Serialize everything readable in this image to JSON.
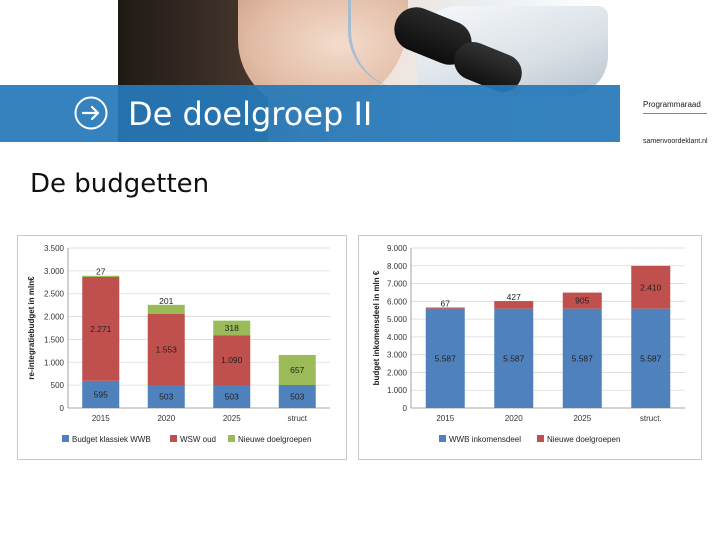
{
  "slide": {
    "title": "De doelgroep II",
    "subtitle": "De budgetten",
    "logo": {
      "name": "Programmaraad",
      "url": "samenvoordeklant.nl"
    }
  },
  "colors": {
    "bar_blue": "#4f81bd",
    "bar_red": "#c0504d",
    "bar_green": "#9bbb59",
    "banner": "#2678b9"
  },
  "icons": {
    "title_arrow": "arrow-right-circle-icon"
  },
  "chart_data": [
    {
      "type": "bar",
      "stacked": true,
      "categories": [
        "2015",
        "2020",
        "2025",
        "struct"
      ],
      "ylabel": "re-integratiebudget in mln€",
      "ylim": [
        0,
        3500
      ],
      "yticks": [
        0,
        500,
        1000,
        1500,
        2000,
        2500,
        3000,
        3500
      ],
      "yticklabels": [
        "0",
        "500",
        "1.000",
        "1.500",
        "2.000",
        "2.500",
        "3.000",
        "3.500"
      ],
      "grid": true,
      "legend": "bottom",
      "series": [
        {
          "name": "Budget klassiek WWB",
          "color": "#4f81bd",
          "values": [
            595,
            503,
            503,
            503
          ],
          "labels": [
            "595",
            "503",
            "503",
            "503"
          ]
        },
        {
          "name": "WSW oud",
          "color": "#c0504d",
          "values": [
            2271,
            1553,
            1090,
            0
          ],
          "labels": [
            "2.271",
            "1.553",
            "1.090",
            ""
          ]
        },
        {
          "name": "Nieuwe doelgroepen",
          "color": "#9bbb59",
          "values": [
            27,
            201,
            318,
            657
          ],
          "labels": [
            "27",
            "201",
            "318",
            "657"
          ]
        }
      ]
    },
    {
      "type": "bar",
      "stacked": true,
      "categories": [
        "2015",
        "2020",
        "2025",
        "struct."
      ],
      "ylabel": "budget inkomensdeel in mln €",
      "ylim": [
        0,
        9000
      ],
      "yticks": [
        0,
        1000,
        2000,
        3000,
        4000,
        5000,
        6000,
        7000,
        8000,
        9000
      ],
      "yticklabels": [
        "0",
        "1.000",
        "2.000",
        "3.000",
        "4.000",
        "5.000",
        "6.000",
        "7.000",
        "8.000",
        "9.000"
      ],
      "grid": true,
      "legend": "bottom",
      "series": [
        {
          "name": "WWB inkomensdeel",
          "color": "#4f81bd",
          "values": [
            5587,
            5587,
            5587,
            5587
          ],
          "labels": [
            "5.587",
            "5.587",
            "5.587",
            "5.587"
          ]
        },
        {
          "name": "Nieuwe doelgroepen",
          "color": "#c0504d",
          "values": [
            67,
            427,
            905,
            2410
          ],
          "labels": [
            "67",
            "427",
            "905",
            "2.410"
          ]
        }
      ]
    }
  ]
}
